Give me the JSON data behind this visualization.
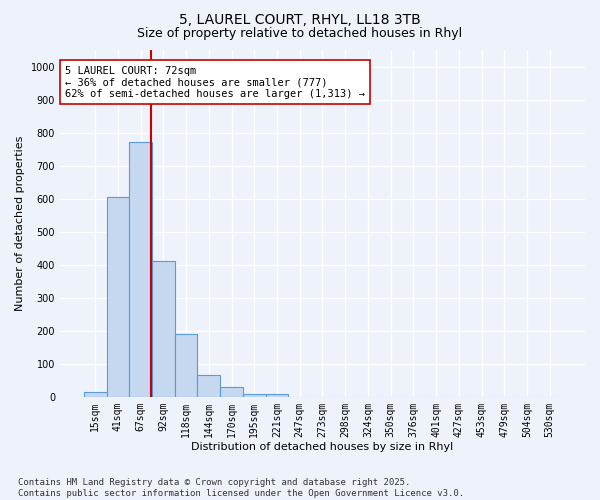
{
  "title1": "5, LAUREL COURT, RHYL, LL18 3TB",
  "title2": "Size of property relative to detached houses in Rhyl",
  "xlabel": "Distribution of detached houses by size in Rhyl",
  "ylabel": "Number of detached properties",
  "bar_labels": [
    "15sqm",
    "41sqm",
    "67sqm",
    "92sqm",
    "118sqm",
    "144sqm",
    "170sqm",
    "195sqm",
    "221sqm",
    "247sqm",
    "273sqm",
    "298sqm",
    "324sqm",
    "350sqm",
    "376sqm",
    "401sqm",
    "427sqm",
    "453sqm",
    "479sqm",
    "504sqm",
    "530sqm"
  ],
  "bar_values": [
    15,
    605,
    770,
    410,
    190,
    65,
    30,
    10,
    8,
    0,
    0,
    0,
    0,
    0,
    0,
    0,
    0,
    0,
    0,
    0,
    0
  ],
  "bar_color": "#c5d8f0",
  "bar_edgecolor": "#5b9bd5",
  "vline_x_idx": 2,
  "vline_color": "#cc0000",
  "annotation_text": "5 LAUREL COURT: 72sqm\n← 36% of detached houses are smaller (777)\n62% of semi-detached houses are larger (1,313) →",
  "annotation_box_edgecolor": "#cc0000",
  "annotation_box_facecolor": "#ffffff",
  "ylim": [
    0,
    1050
  ],
  "yticks": [
    0,
    100,
    200,
    300,
    400,
    500,
    600,
    700,
    800,
    900,
    1000
  ],
  "footnote": "Contains HM Land Registry data © Crown copyright and database right 2025.\nContains public sector information licensed under the Open Government Licence v3.0.",
  "bg_color": "#eef2fb",
  "grid_color": "#ffffff",
  "title_fontsize": 10,
  "subtitle_fontsize": 9,
  "axis_label_fontsize": 8,
  "tick_fontsize": 7,
  "annotation_fontsize": 7.5,
  "footnote_fontsize": 6.5
}
